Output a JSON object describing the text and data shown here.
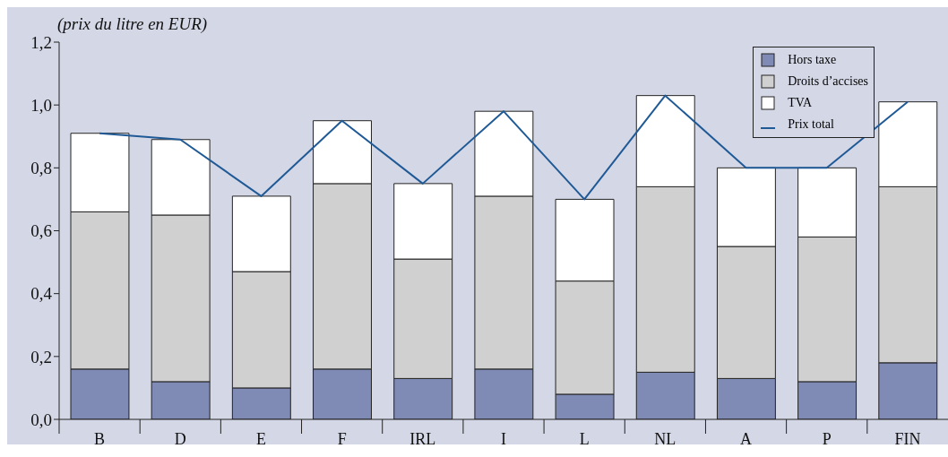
{
  "chart_data": {
    "type": "bar",
    "ylabel": "(prix du litre en EUR)",
    "categories": [
      "B",
      "D",
      "E",
      "F",
      "IRL",
      "I",
      "L",
      "NL",
      "A",
      "P",
      "FIN"
    ],
    "stacked": true,
    "legend": "top right",
    "marker": "none",
    "ylim": [
      0,
      1.2
    ],
    "yticks": [
      {
        "value": 0,
        "label": "0,0"
      },
      {
        "value": 0.2,
        "label": "0,2"
      },
      {
        "value": 0.4,
        "label": "0,4"
      },
      {
        "value": 0.6,
        "label": "0,6"
      },
      {
        "value": 0.8,
        "label": "0,8"
      },
      {
        "value": 1.0,
        "label": "1,0"
      },
      {
        "value": 1.2,
        "label": "1,2"
      }
    ],
    "series": [
      {
        "name": "Hors taxe",
        "color": "#7f8ab5",
        "values": [
          0.16,
          0.12,
          0.1,
          0.16,
          0.13,
          0.16,
          0.08,
          0.15,
          0.13,
          0.12,
          0.18
        ]
      },
      {
        "name": "Droits d’accises",
        "color": "#d0d0d0",
        "values": [
          0.5,
          0.53,
          0.37,
          0.59,
          0.38,
          0.55,
          0.36,
          0.59,
          0.42,
          0.46,
          0.56
        ]
      },
      {
        "name": "TVA",
        "color": "#ffffff",
        "values": [
          0.25,
          0.24,
          0.24,
          0.2,
          0.24,
          0.27,
          0.26,
          0.29,
          0.25,
          0.22,
          0.27
        ]
      },
      {
        "name": "Prix total",
        "type": "line",
        "color": "#1f5a96",
        "values": [
          0.91,
          0.89,
          0.71,
          0.95,
          0.75,
          0.98,
          0.7,
          1.03,
          0.8,
          0.8,
          1.01
        ]
      }
    ]
  }
}
